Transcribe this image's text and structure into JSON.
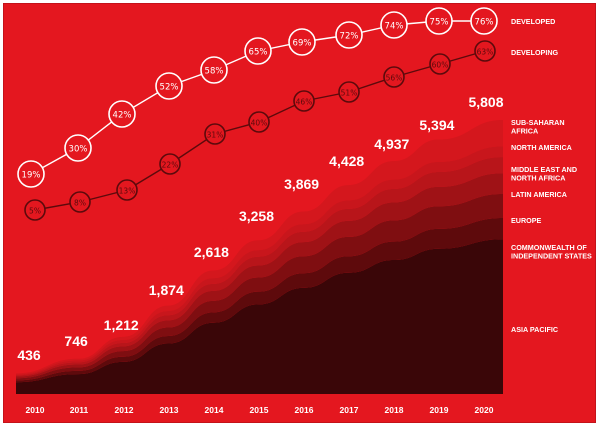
{
  "chart_data": {
    "type": "area",
    "x": [
      "2010",
      "2011",
      "2012",
      "2013",
      "2014",
      "2015",
      "2016",
      "2017",
      "2018",
      "2019",
      "2020"
    ],
    "totals": [
      "436",
      "746",
      "1,212",
      "1,874",
      "2,618",
      "3,258",
      "3,869",
      "4,428",
      "4,937",
      "5,394",
      "5,808"
    ],
    "total_values": [
      436,
      746,
      1212,
      1874,
      2618,
      3258,
      3869,
      4428,
      4937,
      5394,
      5808
    ],
    "ylim": [
      0,
      6000
    ],
    "stacked_series": [
      {
        "name": "ASIA PACIFIC",
        "color": "#3a0608",
        "values": [
          250,
          420,
          680,
          1070,
          1510,
          1900,
          2250,
          2570,
          2840,
          3080,
          3280
        ]
      },
      {
        "name": "COMMONWEALTH OF INDEPENDENT STATES",
        "color": "#5e0a0c",
        "values": [
          40,
          70,
          110,
          160,
          220,
          270,
          310,
          350,
          390,
          420,
          450
        ]
      },
      {
        "name": "EUROPE",
        "color": "#7f0e11",
        "values": [
          45,
          75,
          120,
          180,
          245,
          300,
          360,
          410,
          450,
          480,
          510
        ]
      },
      {
        "name": "LATIN AMERICA",
        "color": "#9f1216",
        "values": [
          35,
          60,
          100,
          150,
          210,
          255,
          300,
          340,
          380,
          410,
          440
        ]
      },
      {
        "name": "MIDDLE EAST AND NORTH AFRICA",
        "color": "#b8151a",
        "values": [
          25,
          45,
          70,
          110,
          150,
          185,
          220,
          255,
          285,
          315,
          340
        ]
      },
      {
        "name": "NORTH AMERICA",
        "color": "#c8161c",
        "values": [
          20,
          40,
          65,
          90,
          120,
          140,
          160,
          180,
          200,
          215,
          230
        ]
      },
      {
        "name": "SUB-SAHARAN AFRICA",
        "color": "#d4171d",
        "values": [
          21,
          36,
          67,
          114,
          163,
          208,
          269,
          323,
          392,
          474,
          558
        ]
      }
    ],
    "penetration_series": [
      {
        "name": "DEVELOPED",
        "labels": [
          "19%",
          "30%",
          "42%",
          "52%",
          "58%",
          "65%",
          "69%",
          "72%",
          "74%",
          "75%",
          "76%"
        ],
        "values": [
          19,
          30,
          42,
          52,
          58,
          65,
          69,
          72,
          74,
          75,
          76
        ]
      },
      {
        "name": "DEVELOPING",
        "labels": [
          "5%",
          "8%",
          "13%",
          "22%",
          "31%",
          "40%",
          "46%",
          "51%",
          "56%",
          "60%",
          "63%"
        ],
        "values": [
          5,
          8,
          13,
          22,
          31,
          40,
          46,
          51,
          56,
          60,
          63
        ]
      }
    ],
    "colors": {
      "background": "#e4171f",
      "text": "#ffffff"
    }
  }
}
